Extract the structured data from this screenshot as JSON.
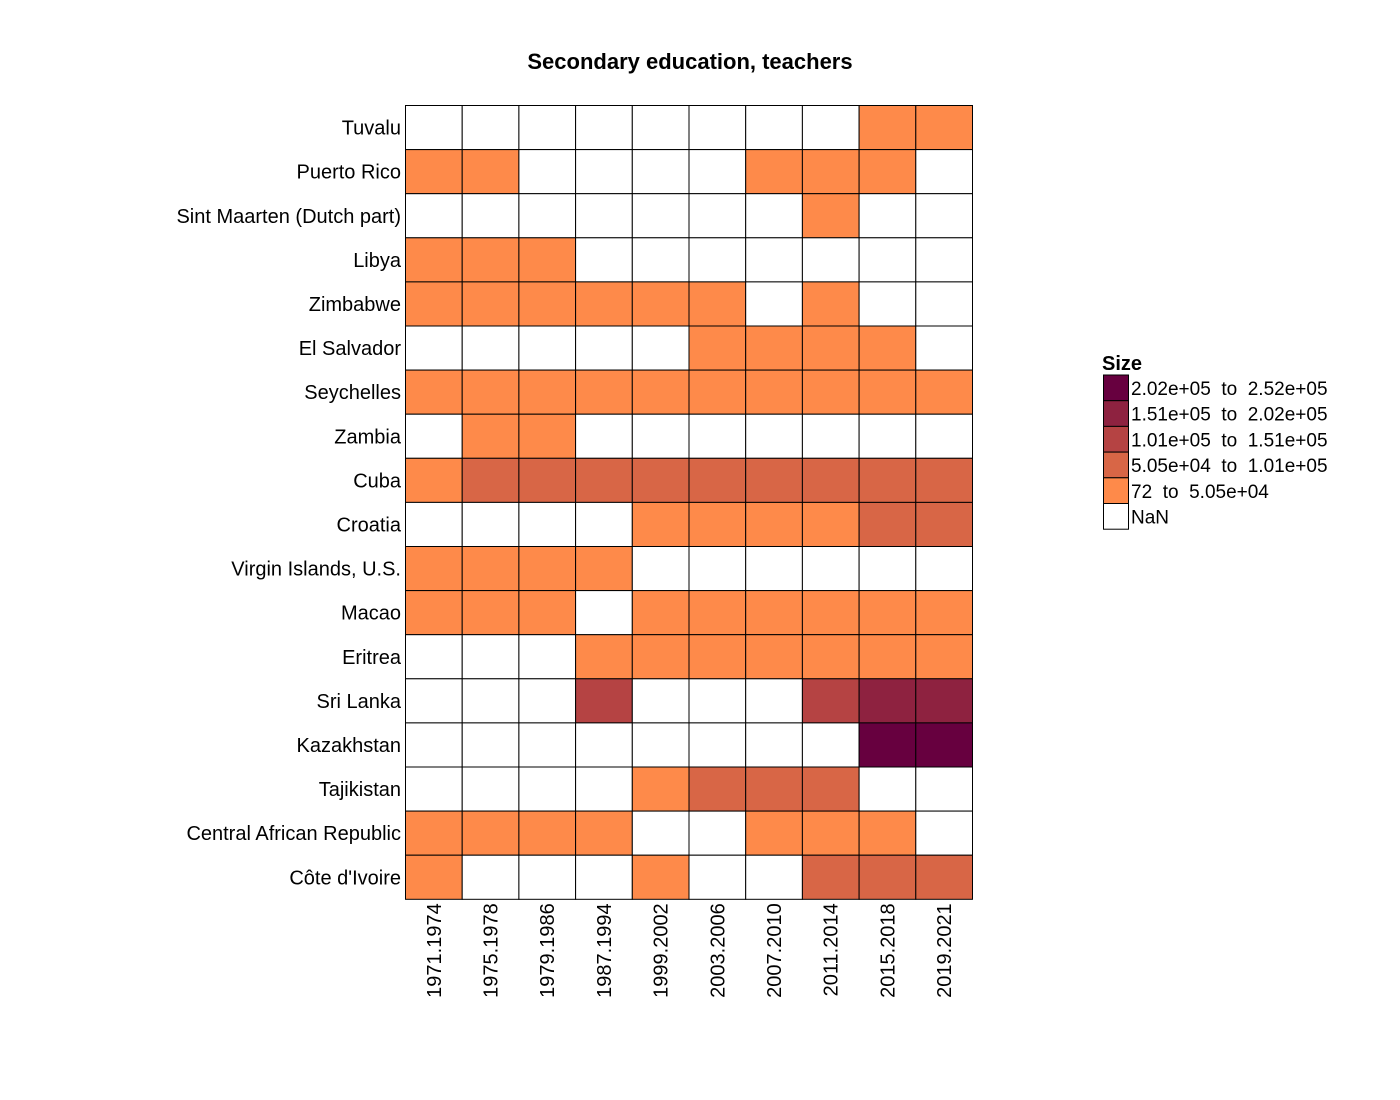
{
  "chart_data": {
    "type": "heatmap",
    "title": "Secondary education, teachers",
    "x_categories": [
      "1971.1974",
      "1975.1978",
      "1979.1986",
      "1987.1994",
      "1999.2002",
      "2003.2006",
      "2007.2010",
      "2011.2014",
      "2015.2018",
      "2019.2021"
    ],
    "y_categories": [
      "Tuvalu",
      "Puerto Rico",
      "Sint Maarten (Dutch part)",
      "Libya",
      "Zimbabwe",
      "El Salvador",
      "Seychelles",
      "Zambia",
      "Cuba",
      "Croatia",
      "Virgin Islands, U.S.",
      "Macao",
      "Eritrea",
      "Sri Lanka",
      "Kazakhstan",
      "Tajikistan",
      "Central African Republic",
      "Côte d'Ivoire"
    ],
    "legend": {
      "title": "Size",
      "position": "right",
      "bins": [
        {
          "label": "2.02e+05  to  2.52e+05",
          "color": "#67003f"
        },
        {
          "label": "1.51e+05  to  2.02e+05",
          "color": "#8e2240"
        },
        {
          "label": "1.01e+05  to  1.51e+05",
          "color": "#b54343"
        },
        {
          "label": "5.05e+04  to  1.01e+05",
          "color": "#d86646"
        },
        {
          "label": "72  to  5.05e+04",
          "color": "#fe8a4a"
        },
        {
          "label": "NaN",
          "color": "#ffffff"
        }
      ]
    },
    "cell_bins": [
      [
        null,
        null,
        null,
        null,
        null,
        null,
        null,
        null,
        4,
        4
      ],
      [
        4,
        4,
        null,
        null,
        null,
        null,
        4,
        4,
        4,
        null
      ],
      [
        null,
        null,
        null,
        null,
        null,
        null,
        null,
        4,
        null,
        null
      ],
      [
        4,
        4,
        4,
        null,
        null,
        null,
        null,
        null,
        null,
        null
      ],
      [
        4,
        4,
        4,
        4,
        4,
        4,
        null,
        4,
        null,
        null
      ],
      [
        null,
        null,
        null,
        null,
        null,
        4,
        4,
        4,
        4,
        null
      ],
      [
        4,
        4,
        4,
        4,
        4,
        4,
        4,
        4,
        4,
        4
      ],
      [
        null,
        4,
        4,
        null,
        null,
        null,
        null,
        null,
        null,
        null
      ],
      [
        4,
        3,
        3,
        3,
        3,
        3,
        3,
        3,
        3,
        3
      ],
      [
        null,
        null,
        null,
        null,
        4,
        4,
        4,
        4,
        3,
        3
      ],
      [
        4,
        4,
        4,
        4,
        null,
        null,
        null,
        null,
        null,
        null
      ],
      [
        4,
        4,
        4,
        null,
        4,
        4,
        4,
        4,
        4,
        4
      ],
      [
        null,
        null,
        null,
        4,
        4,
        4,
        4,
        4,
        4,
        4
      ],
      [
        null,
        null,
        null,
        2,
        null,
        null,
        null,
        2,
        1,
        1
      ],
      [
        null,
        null,
        null,
        null,
        null,
        null,
        null,
        null,
        0,
        0
      ],
      [
        null,
        null,
        null,
        null,
        4,
        3,
        3,
        3,
        null,
        null
      ],
      [
        4,
        4,
        4,
        4,
        null,
        null,
        4,
        4,
        4,
        null
      ],
      [
        4,
        null,
        null,
        null,
        4,
        null,
        null,
        3,
        3,
        3
      ]
    ]
  }
}
